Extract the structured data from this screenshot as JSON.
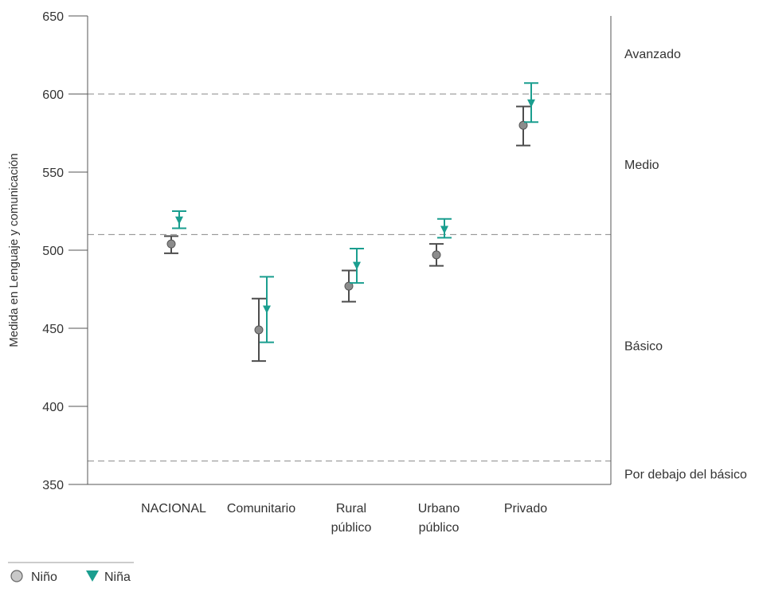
{
  "chart_data": {
    "type": "scatter",
    "ylabel": "Medida en Lenguaje y comunicación",
    "ylim": [
      350,
      650
    ],
    "y_ticks": [
      350,
      400,
      450,
      500,
      550,
      600,
      650
    ],
    "categories": [
      {
        "id": "nacional",
        "lines": [
          "NACIONAL"
        ]
      },
      {
        "id": "comunitario",
        "lines": [
          "Comunitario"
        ]
      },
      {
        "id": "rural-publico",
        "lines": [
          "Rural",
          "público"
        ]
      },
      {
        "id": "urbano-publico",
        "lines": [
          "Urbano",
          "público"
        ]
      },
      {
        "id": "privado",
        "lines": [
          "Privado"
        ]
      }
    ],
    "series": [
      {
        "name": "Niño",
        "marker": "circle",
        "color": "#8c8c8c",
        "bar_color": "#4d4d4d",
        "points": [
          {
            "value": 504,
            "lower": 498,
            "upper": 509
          },
          {
            "value": 449,
            "lower": 429,
            "upper": 469
          },
          {
            "value": 477,
            "lower": 467,
            "upper": 487
          },
          {
            "value": 497,
            "lower": 490,
            "upper": 504
          },
          {
            "value": 580,
            "lower": 567,
            "upper": 592
          }
        ]
      },
      {
        "name": "Niña",
        "marker": "triangle-down",
        "color": "#1a9e8f",
        "bar_color": "#1a9e8f",
        "points": [
          {
            "value": 519,
            "lower": 514,
            "upper": 525
          },
          {
            "value": 462,
            "lower": 441,
            "upper": 483
          },
          {
            "value": 490,
            "lower": 479,
            "upper": 501
          },
          {
            "value": 513,
            "lower": 508,
            "upper": 520
          },
          {
            "value": 594,
            "lower": 582,
            "upper": 607
          }
        ]
      }
    ],
    "thresholds": [
      {
        "value": 600
      },
      {
        "value": 510
      },
      {
        "value": 365
      }
    ],
    "level_labels": [
      {
        "label": "Avanzado",
        "value": 626
      },
      {
        "label": "Medio",
        "value": 555
      },
      {
        "label": "Básico",
        "value": 439
      },
      {
        "label": "Por debajo del básico",
        "value": 357
      }
    ],
    "grid": false,
    "legend_position": "bottom-left"
  }
}
